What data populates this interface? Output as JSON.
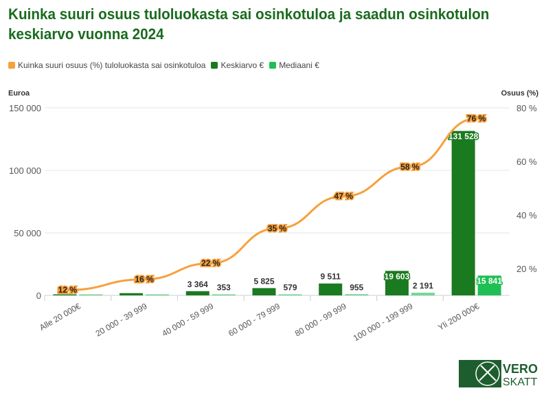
{
  "title": "Kuinka suuri osuus tuloluokasta sai osinkotuloa ja saadun osinkotulon keskiarvo vuonna 2024",
  "legend": [
    {
      "label": "Kuinka suuri osuus (%) tuloluokasta sai osinkotuloa",
      "color": "#f7a03c"
    },
    {
      "label": "Keskiarvo €",
      "color": "#1a7a1f"
    },
    {
      "label": "Mediaani €",
      "color": "#1fbf55"
    }
  ],
  "logo": {
    "line1": "VERO",
    "line2": "SKATT"
  },
  "chart_data": {
    "type": "bar+line",
    "title": "Kuinka suuri osuus tuloluokasta sai osinkotuloa ja saadun osinkotulon keskiarvo vuonna 2024",
    "ylabel": "Euroa",
    "y2label": "Osuus (%)",
    "ylim": [
      0,
      150000
    ],
    "y2lim": [
      10,
      80
    ],
    "yticks": [
      "0",
      "50 000",
      "100 000",
      "150 000"
    ],
    "ytick_values": [
      0,
      50000,
      100000,
      150000
    ],
    "y2ticks": [
      "20 %",
      "40 %",
      "60 %",
      "80 %"
    ],
    "y2tick_values": [
      20,
      40,
      60,
      80
    ],
    "categories": [
      "Alle 20 000€",
      "20 000 - 39 999",
      "40 000 - 59 999",
      "60 000 - 79 999",
      "80 000 - 99 999",
      "100 000 - 199 999",
      "Yli 200 000€"
    ],
    "series": [
      {
        "name": "Keskiarvo €",
        "type": "bar",
        "color": "#1a7a1f",
        "values": [
          700,
          1800,
          3364,
          5825,
          9511,
          19603,
          131528
        ],
        "labels": [
          "",
          "",
          "3 364",
          "5 825",
          "9 511",
          "19 603",
          "131 528"
        ]
      },
      {
        "name": "Mediaani €",
        "type": "bar",
        "color": "#1fbf55",
        "values": [
          100,
          150,
          353,
          579,
          955,
          2191,
          15841
        ],
        "labels": [
          "",
          "",
          "353",
          "579",
          "955",
          "2 191",
          "15 841"
        ]
      },
      {
        "name": "Kuinka suuri osuus (%) tuloluokasta sai osinkotuloa",
        "type": "line",
        "axis": "right",
        "color": "#f7a03c",
        "values": [
          12,
          16,
          22,
          35,
          47,
          58,
          76
        ],
        "labels": [
          "12 %",
          "16 %",
          "22 %",
          "35 %",
          "47 %",
          "58 %",
          "76 %"
        ]
      }
    ]
  }
}
